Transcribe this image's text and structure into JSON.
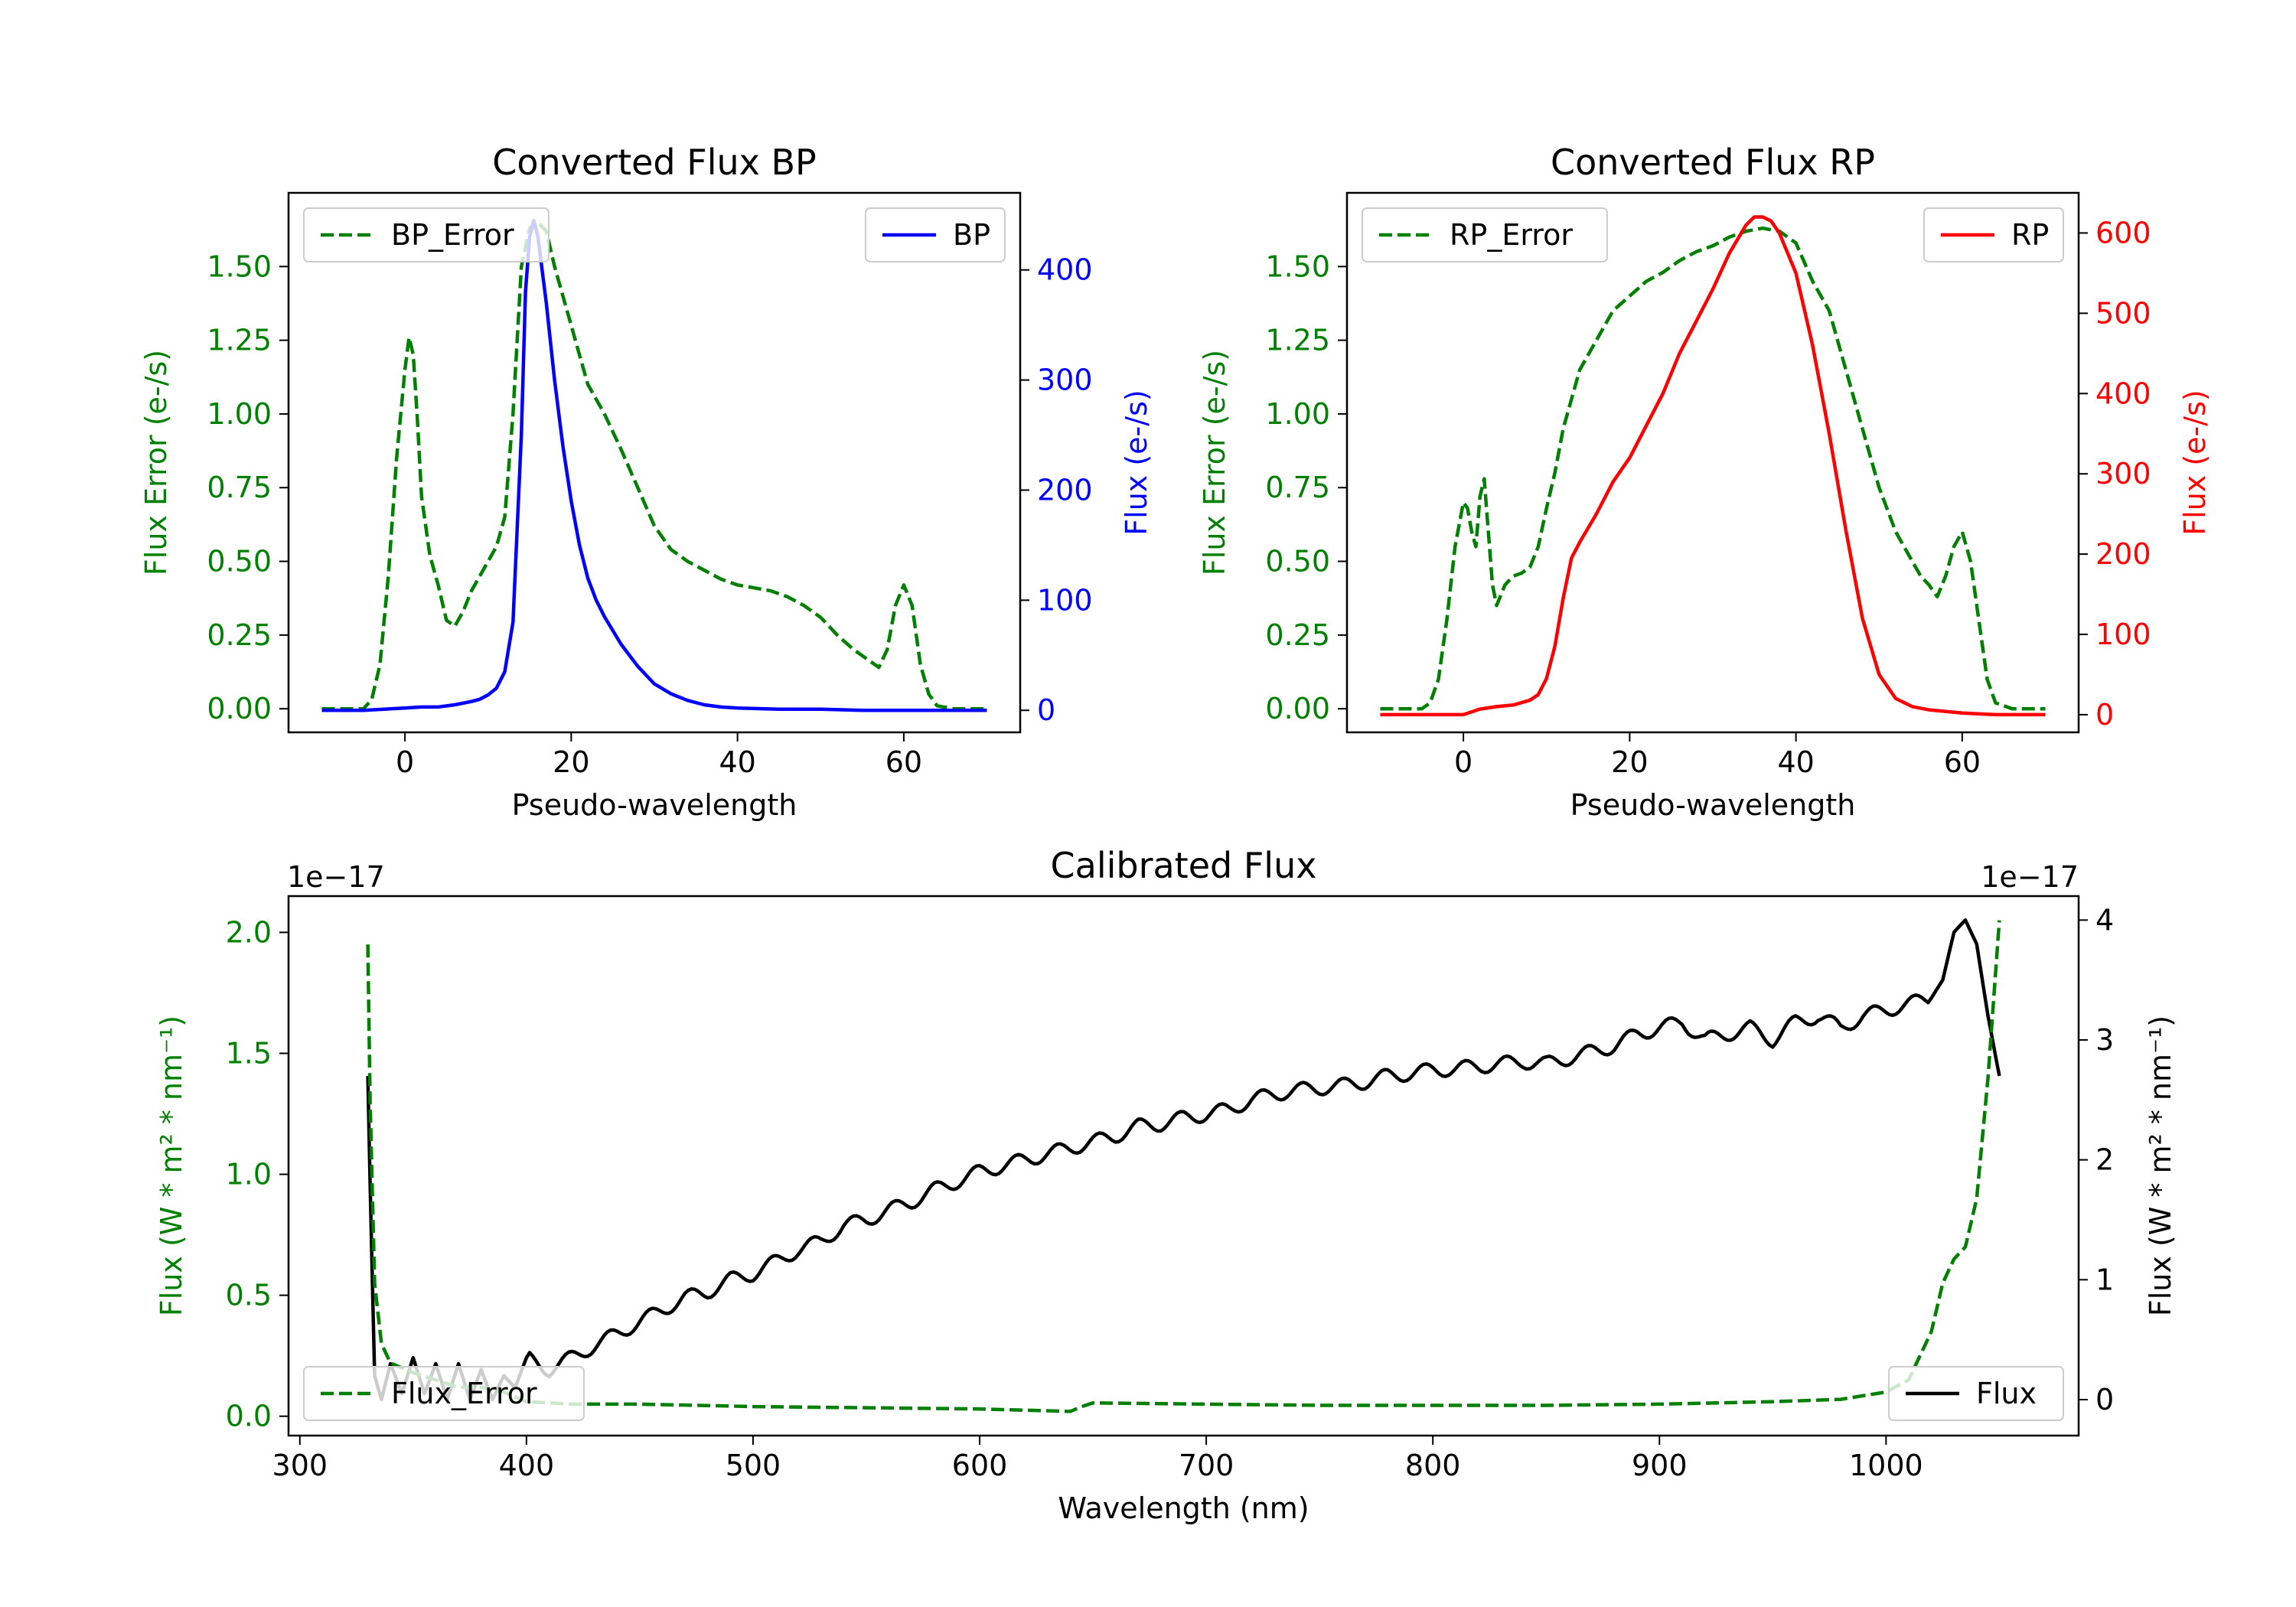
{
  "chart_data": [
    {
      "id": "bp",
      "type": "line",
      "title": "Converted Flux BP",
      "xlabel": "Pseudo-wavelength",
      "ylabel_left": "Flux Error (e-/s)",
      "ylabel_right": "Flux (e-/s)",
      "xlim": [
        -14,
        74
      ],
      "ylim_left": [
        -0.08,
        1.75
      ],
      "ylim_right": [
        -20,
        470
      ],
      "xticks": [
        0,
        20,
        40,
        60
      ],
      "yticks_left": [
        0.0,
        0.25,
        0.5,
        0.75,
        1.0,
        1.25,
        1.5
      ],
      "yticks_left_labels": [
        "0.00",
        "0.25",
        "0.50",
        "0.75",
        "1.00",
        "1.25",
        "1.50"
      ],
      "yticks_right": [
        0,
        100,
        200,
        300,
        400
      ],
      "yticks_right_labels": [
        "0",
        "100",
        "200",
        "300",
        "400"
      ],
      "left_axis_color": "#008000",
      "right_axis_color": "#0000ff",
      "legend_left": "upper left",
      "legend_right": "upper right",
      "series": [
        {
          "name": "BP_Error",
          "axis": "left",
          "color": "#008000",
          "dash": true,
          "x": [
            -10,
            -5,
            -4,
            -3,
            -2,
            -1,
            0,
            0.5,
            1,
            1.5,
            2,
            3,
            4,
            5,
            6,
            7,
            8,
            9,
            10,
            11,
            12,
            13,
            14,
            15,
            16,
            17,
            18,
            19,
            20,
            21,
            22,
            24,
            26,
            28,
            30,
            32,
            34,
            36,
            38,
            40,
            42,
            44,
            46,
            48,
            50,
            52,
            54,
            56,
            57,
            58,
            59,
            60,
            61,
            62,
            63,
            64,
            66,
            70
          ],
          "y": [
            0,
            0,
            0.03,
            0.15,
            0.45,
            0.85,
            1.15,
            1.26,
            1.2,
            0.98,
            0.72,
            0.52,
            0.42,
            0.3,
            0.28,
            0.33,
            0.4,
            0.45,
            0.5,
            0.55,
            0.65,
            1.0,
            1.5,
            1.63,
            1.65,
            1.62,
            1.5,
            1.4,
            1.3,
            1.2,
            1.1,
            1.0,
            0.88,
            0.75,
            0.62,
            0.54,
            0.5,
            0.47,
            0.44,
            0.42,
            0.41,
            0.4,
            0.38,
            0.35,
            0.31,
            0.25,
            0.2,
            0.16,
            0.14,
            0.2,
            0.35,
            0.42,
            0.35,
            0.15,
            0.05,
            0.01,
            0,
            0
          ]
        },
        {
          "name": "BP",
          "axis": "right",
          "color": "#0000ff",
          "dash": false,
          "x": [
            -10,
            -5,
            0,
            2,
            4,
            6,
            8,
            9,
            10,
            11,
            12,
            13,
            14,
            14.5,
            15,
            15.5,
            16,
            17,
            18,
            19,
            20,
            21,
            22,
            23,
            24,
            26,
            28,
            30,
            32,
            34,
            36,
            38,
            40,
            45,
            50,
            55,
            60,
            65,
            70
          ],
          "y": [
            0,
            0,
            2,
            3,
            3,
            5,
            8,
            10,
            14,
            20,
            35,
            80,
            250,
            380,
            430,
            445,
            430,
            370,
            300,
            240,
            190,
            150,
            120,
            100,
            85,
            60,
            40,
            24,
            15,
            9,
            5,
            3,
            2,
            1,
            1,
            0,
            0,
            0,
            0
          ]
        }
      ]
    },
    {
      "id": "rp",
      "type": "line",
      "title": "Converted Flux RP",
      "xlabel": "Pseudo-wavelength",
      "ylabel_left": "Flux Error (e-/s)",
      "ylabel_right": "Flux (e-/s)",
      "xlim": [
        -14,
        74
      ],
      "ylim_left": [
        -0.08,
        1.75
      ],
      "ylim_right": [
        -22,
        650
      ],
      "xticks": [
        0,
        20,
        40,
        60
      ],
      "yticks_left": [
        0.0,
        0.25,
        0.5,
        0.75,
        1.0,
        1.25,
        1.5
      ],
      "yticks_left_labels": [
        "0.00",
        "0.25",
        "0.50",
        "0.75",
        "1.00",
        "1.25",
        "1.50"
      ],
      "yticks_right": [
        0,
        100,
        200,
        300,
        400,
        500,
        600
      ],
      "yticks_right_labels": [
        "0",
        "100",
        "200",
        "300",
        "400",
        "500",
        "600"
      ],
      "left_axis_color": "#008000",
      "right_axis_color": "#ff0000",
      "legend_left": "upper left",
      "legend_right": "upper right",
      "series": [
        {
          "name": "RP_Error",
          "axis": "left",
          "color": "#008000",
          "dash": true,
          "x": [
            -10,
            -5,
            -4,
            -3,
            -2,
            -1,
            0,
            0.5,
            1,
            1.5,
            2,
            2.5,
            3,
            3.5,
            4,
            5,
            6,
            7,
            8,
            9,
            10,
            11,
            12,
            13,
            14,
            16,
            18,
            20,
            22,
            24,
            26,
            28,
            30,
            32,
            34,
            36,
            38,
            40,
            42,
            44,
            46,
            48,
            50,
            52,
            54,
            55,
            56,
            57,
            58,
            59,
            60,
            61,
            62,
            63,
            64,
            66,
            70
          ],
          "y": [
            0,
            0,
            0.02,
            0.1,
            0.3,
            0.55,
            0.7,
            0.68,
            0.6,
            0.55,
            0.72,
            0.78,
            0.6,
            0.42,
            0.35,
            0.42,
            0.45,
            0.46,
            0.48,
            0.55,
            0.68,
            0.8,
            0.95,
            1.05,
            1.15,
            1.25,
            1.35,
            1.4,
            1.45,
            1.48,
            1.52,
            1.55,
            1.57,
            1.6,
            1.62,
            1.63,
            1.62,
            1.58,
            1.45,
            1.35,
            1.15,
            0.95,
            0.75,
            0.6,
            0.5,
            0.45,
            0.42,
            0.38,
            0.45,
            0.55,
            0.6,
            0.5,
            0.3,
            0.1,
            0.02,
            0,
            0
          ]
        },
        {
          "name": "RP",
          "axis": "right",
          "color": "#ff0000",
          "dash": false,
          "x": [
            -10,
            -5,
            0,
            2,
            4,
            6,
            8,
            9,
            10,
            11,
            12,
            13,
            14,
            16,
            18,
            20,
            22,
            24,
            26,
            28,
            30,
            32,
            34,
            35,
            36,
            37,
            38,
            40,
            42,
            44,
            46,
            48,
            50,
            52,
            54,
            56,
            58,
            60,
            62,
            64,
            70
          ],
          "y": [
            0,
            0,
            0,
            7,
            10,
            12,
            18,
            25,
            45,
            85,
            145,
            195,
            215,
            250,
            290,
            320,
            360,
            400,
            450,
            490,
            530,
            575,
            610,
            620,
            620,
            615,
            600,
            550,
            460,
            350,
            230,
            120,
            50,
            20,
            10,
            6,
            4,
            2,
            1,
            0,
            0
          ]
        }
      ]
    },
    {
      "id": "calibrated",
      "type": "line",
      "title": "Calibrated Flux",
      "xlabel": "Wavelength (nm)",
      "ylabel_left": "Flux (W * m² * nm⁻¹)",
      "ylabel_right": "Flux (W * m² * nm⁻¹)",
      "offset_left": "1e−17",
      "offset_right": "1e−17",
      "xlim": [
        295,
        1085
      ],
      "ylim_left": [
        -0.08,
        2.15
      ],
      "ylim_right": [
        -0.3,
        4.2
      ],
      "xticks": [
        300,
        400,
        500,
        600,
        700,
        800,
        900,
        1000
      ],
      "yticks_left": [
        0.0,
        0.5,
        1.0,
        1.5,
        2.0
      ],
      "yticks_left_labels": [
        "0.0",
        "0.5",
        "1.0",
        "1.5",
        "2.0"
      ],
      "yticks_right": [
        0,
        1,
        2,
        3,
        4
      ],
      "yticks_right_labels": [
        "0",
        "1",
        "2",
        "3",
        "4"
      ],
      "left_axis_color": "#008000",
      "right_axis_color": "#000000",
      "legend_left": "lower left",
      "legend_right": "lower right",
      "series": [
        {
          "name": "Flux",
          "axis": "right",
          "color": "#000000",
          "dash": false,
          "x": [
            330,
            331,
            333,
            336,
            340,
            345,
            350,
            355,
            360,
            365,
            370,
            375,
            380,
            385,
            390,
            395,
            400,
            410,
            420,
            430,
            440,
            450,
            460,
            470,
            480,
            490,
            500,
            510,
            520,
            530,
            540,
            550,
            560,
            570,
            580,
            590,
            600,
            610,
            620,
            630,
            640,
            650,
            660,
            670,
            680,
            690,
            700,
            710,
            720,
            730,
            740,
            750,
            760,
            770,
            780,
            790,
            800,
            810,
            820,
            830,
            840,
            850,
            860,
            870,
            880,
            890,
            900,
            910,
            920,
            930,
            940,
            950,
            960,
            970,
            980,
            990,
            1000,
            1010,
            1020,
            1025,
            1030,
            1035,
            1040,
            1045,
            1050
          ],
          "y": [
            2.7,
            1.8,
            0.2,
            0.0,
            0.3,
            0.05,
            0.35,
            0.05,
            0.3,
            0.0,
            0.3,
            0.0,
            0.25,
            0.0,
            0.2,
            0.1,
            0.35,
            0.25,
            0.35,
            0.45,
            0.55,
            0.65,
            0.75,
            0.85,
            0.9,
            1.0,
            1.05,
            1.15,
            1.25,
            1.32,
            1.45,
            1.5,
            1.58,
            1.65,
            1.75,
            1.82,
            1.9,
            1.95,
            2.0,
            2.05,
            2.1,
            2.15,
            2.2,
            2.28,
            2.3,
            2.35,
            2.38,
            2.42,
            2.5,
            2.55,
            2.58,
            2.6,
            2.62,
            2.65,
            2.7,
            2.72,
            2.75,
            2.76,
            2.78,
            2.8,
            2.82,
            2.8,
            2.85,
            2.9,
            2.95,
            3.05,
            3.1,
            3.15,
            3.0,
            3.05,
            3.1,
            3.0,
            3.15,
            3.2,
            3.1,
            3.2,
            3.25,
            3.3,
            3.35,
            3.5,
            3.9,
            4.0,
            3.8,
            3.2,
            2.7
          ],
          "wiggle_amp": 0.06,
          "wiggle_period": 18
        },
        {
          "name": "Flux_Error",
          "axis": "left",
          "color": "#008000",
          "dash": true,
          "x": [
            330,
            331,
            333,
            336,
            340,
            350,
            360,
            370,
            380,
            390,
            400,
            420,
            450,
            500,
            550,
            600,
            620,
            640,
            645,
            650,
            700,
            750,
            800,
            850,
            900,
            950,
            980,
            1000,
            1010,
            1015,
            1020,
            1025,
            1030,
            1035,
            1040,
            1045,
            1050
          ],
          "y": [
            1.95,
            1.3,
            0.55,
            0.3,
            0.22,
            0.18,
            0.15,
            0.12,
            0.12,
            0.1,
            0.06,
            0.05,
            0.05,
            0.04,
            0.035,
            0.03,
            0.025,
            0.02,
            0.04,
            0.055,
            0.05,
            0.045,
            0.045,
            0.045,
            0.05,
            0.06,
            0.07,
            0.1,
            0.15,
            0.25,
            0.35,
            0.55,
            0.65,
            0.7,
            0.9,
            1.4,
            2.05
          ]
        }
      ]
    }
  ]
}
